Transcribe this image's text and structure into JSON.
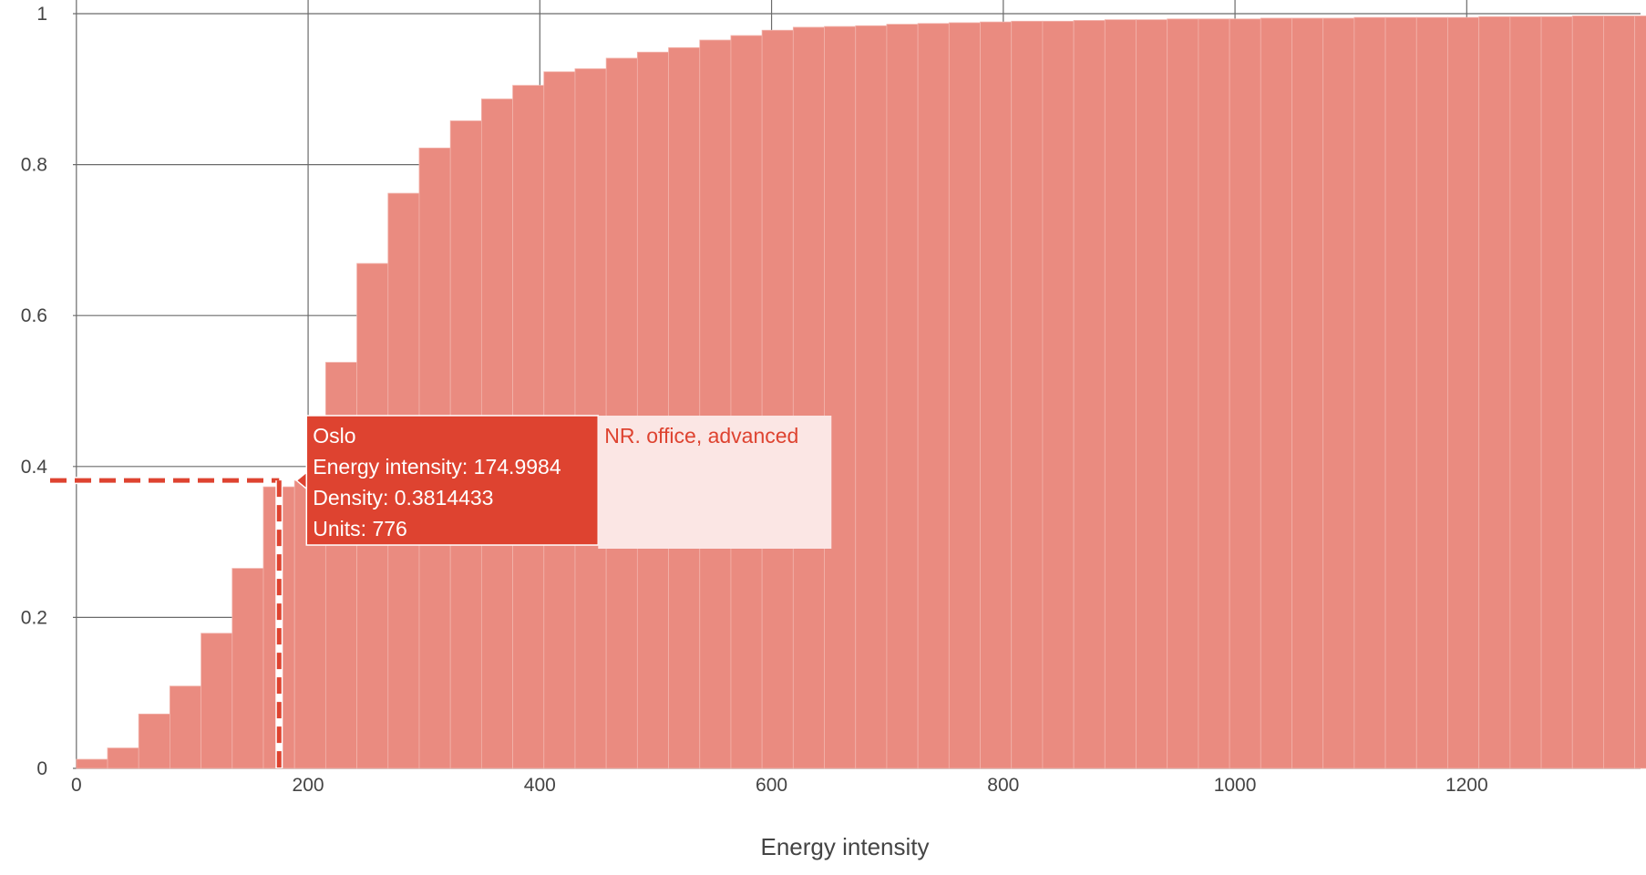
{
  "chart_data": {
    "type": "bar",
    "histnorm": "cumulative",
    "xlabel": "Energy intensity",
    "ylabel": "",
    "xlim": [
      -3,
      1350
    ],
    "ylim": [
      0,
      1
    ],
    "bin_width": 26.9,
    "x_ticks": [
      {
        "value": 0,
        "label": "0"
      },
      {
        "value": 200,
        "label": "200"
      },
      {
        "value": 400,
        "label": "400"
      },
      {
        "value": 600,
        "label": "600"
      },
      {
        "value": 800,
        "label": "800"
      },
      {
        "value": 1000,
        "label": "1000"
      },
      {
        "value": 1200,
        "label": "1200"
      }
    ],
    "y_ticks": [
      {
        "value": 0,
        "label": "0"
      },
      {
        "value": 0.2,
        "label": "0.2"
      },
      {
        "value": 0.4,
        "label": "0.4"
      },
      {
        "value": 0.6,
        "label": "0.6"
      },
      {
        "value": 0.8,
        "label": "0.8"
      },
      {
        "value": 1,
        "label": "1"
      }
    ],
    "grid": true,
    "colors": {
      "bar": "#ea8b80",
      "bar_edge": "#f2b3ab",
      "highlight": "#de4330",
      "grid": "#6b6b6b",
      "tooltip_secondary_bg": "#fbe6e4"
    },
    "series": [
      {
        "values": [
          0.012,
          0.027,
          0.072,
          0.109,
          0.179,
          0.265,
          0.373,
          0.381,
          0.538,
          0.669,
          0.762,
          0.822,
          0.858,
          0.887,
          0.905,
          0.923,
          0.927,
          0.941,
          0.949,
          0.955,
          0.965,
          0.971,
          0.978,
          0.982,
          0.983,
          0.984,
          0.986,
          0.987,
          0.988,
          0.989,
          0.99,
          0.99,
          0.991,
          0.992,
          0.992,
          0.993,
          0.993,
          0.993,
          0.994,
          0.994,
          0.994,
          0.995,
          0.995,
          0.995,
          0.995,
          0.996,
          0.996,
          0.996,
          0.997,
          0.997,
          0.997,
          0.998,
          0.998,
          0.998,
          0.999,
          0.999,
          0.999
        ]
      }
    ]
  },
  "hover": {
    "x": 174.9984,
    "y": 0.3814433,
    "lines": [
      "Oslo",
      "Energy intensity: 174.9984",
      "Density: 0.3814433",
      "Units: 776"
    ],
    "trace_name": "NR. office, advanced"
  }
}
